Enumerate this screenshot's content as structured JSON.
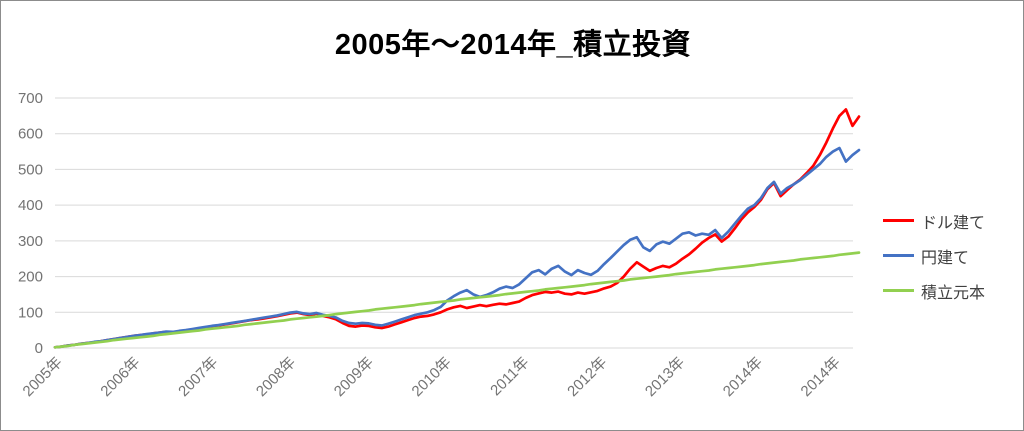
{
  "title": "2005年～2014年_積立投資",
  "chart_data": {
    "type": "line",
    "title": "2005年～2014年_積立投資",
    "xlabel": "",
    "ylabel": "",
    "ylim": [
      0,
      700
    ],
    "y_ticks": [
      0,
      100,
      200,
      300,
      400,
      500,
      600,
      700
    ],
    "x_tick_labels": [
      "2005年",
      "2006年",
      "2007年",
      "2008年",
      "2009年",
      "2010年",
      "2011年",
      "2012年",
      "2013年",
      "2014年",
      "2014年"
    ],
    "x_unit": "months from 2005-01, plotted left to right",
    "grid": "horizontal-only",
    "gridline_color": "#d9d9d9",
    "axis_label_color": "#737373",
    "legend_position": "right",
    "series": [
      {
        "name": "ドル建て",
        "color": "#ff0000",
        "values": [
          2,
          4,
          7,
          9,
          12,
          14,
          16,
          19,
          22,
          25,
          28,
          31,
          34,
          36,
          38,
          41,
          43,
          45,
          44,
          47,
          49,
          52,
          55,
          58,
          61,
          63,
          66,
          69,
          72,
          75,
          78,
          80,
          83,
          86,
          89,
          93,
          97,
          99,
          95,
          92,
          96,
          90,
          86,
          80,
          70,
          62,
          60,
          63,
          62,
          58,
          56,
          60,
          66,
          72,
          78,
          84,
          88,
          90,
          94,
          100,
          108,
          114,
          118,
          112,
          116,
          120,
          117,
          121,
          124,
          122,
          126,
          130,
          140,
          148,
          153,
          157,
          155,
          158,
          152,
          150,
          155,
          152,
          156,
          160,
          167,
          172,
          182,
          200,
          222,
          240,
          228,
          216,
          224,
          230,
          226,
          236,
          250,
          262,
          278,
          295,
          308,
          318,
          298,
          312,
          335,
          360,
          380,
          395,
          415,
          445,
          462,
          425,
          442,
          458,
          472,
          490,
          510,
          540,
          575,
          615,
          650,
          668,
          622,
          648
        ]
      },
      {
        "name": "円建て",
        "color": "#4472c4",
        "values": [
          2,
          4,
          7,
          9,
          12,
          14,
          17,
          19,
          22,
          25,
          28,
          31,
          34,
          36,
          39,
          41,
          43,
          46,
          45,
          48,
          50,
          53,
          56,
          59,
          62,
          64,
          67,
          70,
          73,
          76,
          79,
          82,
          85,
          88,
          91,
          95,
          99,
          101,
          97,
          95,
          98,
          93,
          90,
          85,
          76,
          70,
          68,
          70,
          69,
          65,
          63,
          68,
          74,
          80,
          86,
          92,
          96,
          100,
          106,
          115,
          133,
          145,
          155,
          162,
          150,
          143,
          148,
          156,
          166,
          172,
          168,
          178,
          195,
          212,
          218,
          206,
          222,
          230,
          214,
          204,
          218,
          210,
          205,
          216,
          235,
          252,
          270,
          288,
          303,
          310,
          282,
          272,
          290,
          298,
          292,
          306,
          320,
          324,
          315,
          320,
          317,
          330,
          308,
          326,
          348,
          370,
          390,
          400,
          420,
          448,
          465,
          432,
          448,
          458,
          470,
          485,
          500,
          515,
          535,
          550,
          560,
          522,
          540,
          554
        ]
      },
      {
        "name": "積立元本",
        "color": "#92d050",
        "values": [
          2,
          4,
          6,
          9,
          11,
          13,
          15,
          17,
          19,
          22,
          24,
          26,
          28,
          30,
          32,
          34,
          37,
          39,
          41,
          43,
          45,
          47,
          49,
          52,
          54,
          56,
          58,
          60,
          62,
          65,
          67,
          69,
          71,
          73,
          75,
          77,
          80,
          82,
          84,
          86,
          88,
          90,
          92,
          95,
          97,
          99,
          101,
          103,
          105,
          108,
          110,
          112,
          114,
          116,
          118,
          120,
          123,
          125,
          127,
          129,
          131,
          133,
          136,
          138,
          140,
          142,
          144,
          146,
          148,
          151,
          153,
          155,
          157,
          159,
          161,
          164,
          166,
          168,
          170,
          172,
          174,
          176,
          179,
          181,
          183,
          185,
          187,
          189,
          192,
          194,
          196,
          198,
          200,
          202,
          204,
          207,
          209,
          211,
          213,
          215,
          217,
          220,
          222,
          224,
          226,
          228,
          230,
          232,
          235,
          237,
          239,
          241,
          243,
          245,
          248,
          250,
          252,
          254,
          256,
          258,
          261,
          263,
          265,
          267
        ]
      }
    ]
  }
}
